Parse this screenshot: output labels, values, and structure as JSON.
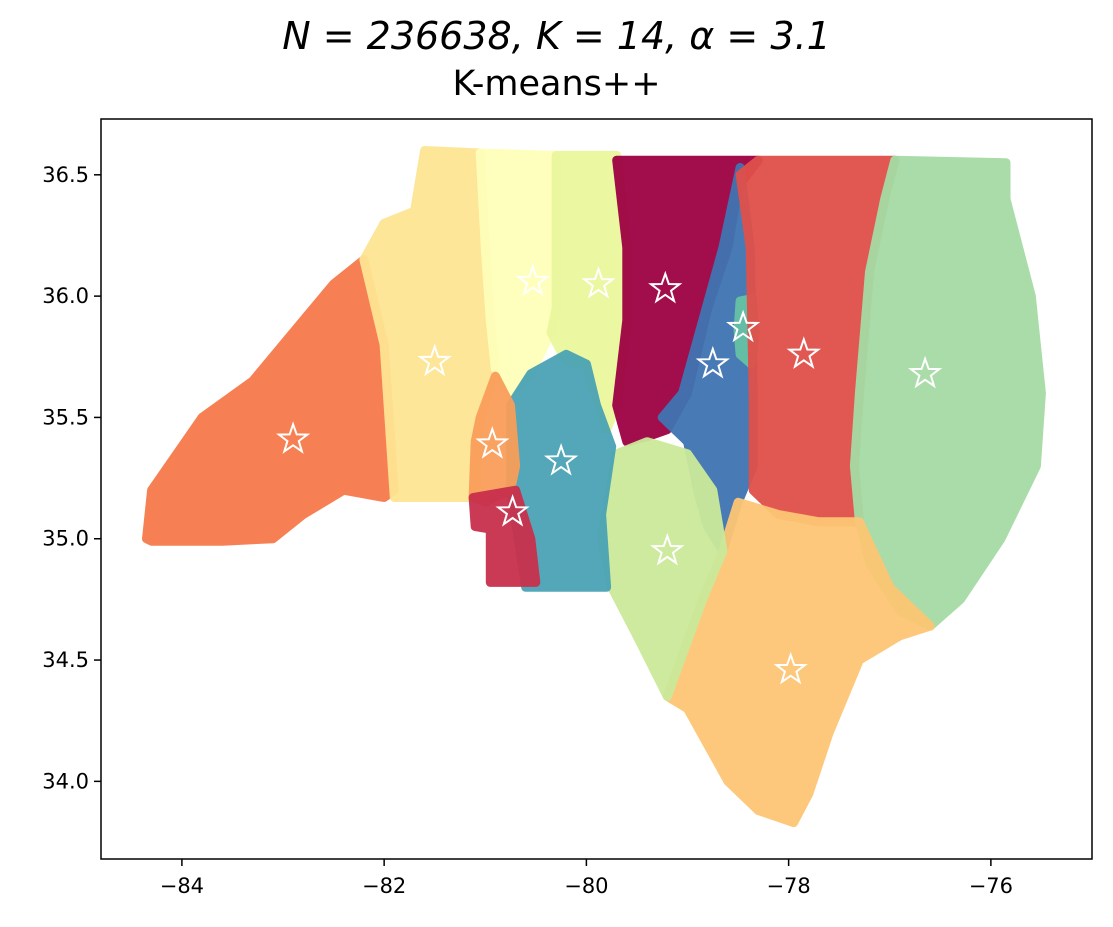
{
  "chart_data": {
    "type": "scatter",
    "title_line1": "N = 236638, K = 14, α = 3.1",
    "title_line2": "K-means++",
    "xlabel": "",
    "ylabel": "",
    "xlim": [
      -84.8,
      -75.0
    ],
    "ylim": [
      33.68,
      36.73
    ],
    "x_ticks": [
      -84,
      -82,
      -80,
      -78,
      -76
    ],
    "x_tick_labels": [
      "−84",
      "−82",
      "−80",
      "−78",
      "−76"
    ],
    "y_ticks": [
      34.0,
      34.5,
      35.0,
      35.5,
      36.0,
      36.5
    ],
    "y_tick_labels": [
      "34.0",
      "34.5",
      "35.0",
      "35.5",
      "36.0",
      "36.5"
    ],
    "grid": false,
    "n_points": 236638,
    "n_clusters": 14,
    "alpha": 3.1,
    "clusters": [
      {
        "id": 0,
        "color": "#f67a4a",
        "centroid": [
          -82.9,
          35.41
        ],
        "region": [
          [
            -84.35,
            35.0
          ],
          [
            -84.3,
            35.2
          ],
          [
            -83.8,
            35.5
          ],
          [
            -83.3,
            35.65
          ],
          [
            -82.8,
            35.9
          ],
          [
            -82.5,
            36.05
          ],
          [
            -82.2,
            36.15
          ],
          [
            -82.0,
            35.8
          ],
          [
            -81.9,
            35.2
          ],
          [
            -82.0,
            35.17
          ],
          [
            -82.4,
            35.2
          ],
          [
            -82.8,
            35.1
          ],
          [
            -83.1,
            35.0
          ],
          [
            -83.6,
            34.99
          ],
          [
            -84.3,
            34.99
          ]
        ]
      },
      {
        "id": 1,
        "color": "#fee593",
        "centroid": [
          -81.5,
          35.73
        ],
        "region": [
          [
            -82.2,
            36.15
          ],
          [
            -82.0,
            36.3
          ],
          [
            -81.7,
            36.35
          ],
          [
            -81.6,
            36.6
          ],
          [
            -81.05,
            36.59
          ],
          [
            -81.0,
            36.2
          ],
          [
            -80.95,
            35.9
          ],
          [
            -80.9,
            35.7
          ],
          [
            -81.05,
            35.5
          ],
          [
            -81.1,
            35.17
          ],
          [
            -81.5,
            35.17
          ],
          [
            -81.9,
            35.17
          ],
          [
            -82.0,
            35.8
          ]
        ]
      },
      {
        "id": 2,
        "color": "#ffffba",
        "centroid": [
          -80.53,
          36.06
        ],
        "region": [
          [
            -81.05,
            36.59
          ],
          [
            -80.3,
            36.58
          ],
          [
            -80.3,
            36.2
          ],
          [
            -80.3,
            35.95
          ],
          [
            -80.35,
            35.85
          ],
          [
            -80.55,
            35.68
          ],
          [
            -80.75,
            35.6
          ],
          [
            -80.9,
            35.7
          ],
          [
            -80.95,
            35.9
          ],
          [
            -81.0,
            36.2
          ]
        ]
      },
      {
        "id": 3,
        "color": "#eaf79d",
        "centroid": [
          -79.88,
          36.05
        ],
        "region": [
          [
            -80.3,
            36.58
          ],
          [
            -79.7,
            36.58
          ],
          [
            -79.6,
            36.2
          ],
          [
            -79.6,
            35.9
          ],
          [
            -79.7,
            35.55
          ],
          [
            -79.8,
            35.45
          ],
          [
            -80.0,
            35.72
          ],
          [
            -80.2,
            35.73
          ],
          [
            -80.35,
            35.85
          ],
          [
            -80.3,
            35.95
          ],
          [
            -80.3,
            36.2
          ]
        ]
      },
      {
        "id": 4,
        "color": "#9e0142",
        "centroid": [
          -79.22,
          36.03
        ],
        "region": [
          [
            -79.7,
            36.56
          ],
          [
            -78.3,
            36.56
          ],
          [
            -78.5,
            36.45
          ],
          [
            -78.6,
            36.2
          ],
          [
            -78.8,
            35.95
          ],
          [
            -79.0,
            35.6
          ],
          [
            -79.2,
            35.45
          ],
          [
            -79.4,
            35.42
          ],
          [
            -79.6,
            35.4
          ],
          [
            -79.7,
            35.55
          ],
          [
            -79.6,
            35.9
          ],
          [
            -79.6,
            36.2
          ]
        ]
      },
      {
        "id": 5,
        "color": "#3f74b2",
        "centroid": [
          -78.75,
          35.72
        ],
        "region": [
          [
            -78.48,
            36.53
          ],
          [
            -78.38,
            36.2
          ],
          [
            -78.35,
            35.6
          ],
          [
            -78.35,
            35.3
          ],
          [
            -78.5,
            35.15
          ],
          [
            -78.65,
            34.95
          ],
          [
            -78.8,
            35.05
          ],
          [
            -78.9,
            35.2
          ],
          [
            -79.0,
            35.4
          ],
          [
            -79.25,
            35.5
          ],
          [
            -79.05,
            35.6
          ],
          [
            -78.85,
            35.9
          ],
          [
            -78.65,
            36.2
          ]
        ]
      },
      {
        "id": 6,
        "color": "#66c2a5",
        "centroid": [
          -78.45,
          35.87
        ],
        "region": [
          [
            -78.48,
            35.98
          ],
          [
            -78.36,
            35.99
          ],
          [
            -78.33,
            35.85
          ],
          [
            -78.37,
            35.72
          ],
          [
            -78.48,
            35.76
          ],
          [
            -78.5,
            35.86
          ]
        ]
      },
      {
        "id": 7,
        "color": "#e0504a",
        "centroid": [
          -77.85,
          35.76
        ],
        "region": [
          [
            -78.3,
            36.56
          ],
          [
            -76.95,
            36.56
          ],
          [
            -77.05,
            36.4
          ],
          [
            -77.2,
            36.1
          ],
          [
            -77.3,
            35.6
          ],
          [
            -77.35,
            35.3
          ],
          [
            -77.3,
            35.07
          ],
          [
            -77.7,
            35.07
          ],
          [
            -78.1,
            35.1
          ],
          [
            -78.35,
            35.2
          ],
          [
            -78.35,
            35.6
          ],
          [
            -78.38,
            36.2
          ],
          [
            -78.48,
            36.5
          ]
        ]
      },
      {
        "id": 8,
        "color": "#a5dba4",
        "centroid": [
          -76.65,
          35.68
        ],
        "region": [
          [
            -76.95,
            36.56
          ],
          [
            -75.85,
            36.55
          ],
          [
            -75.85,
            36.4
          ],
          [
            -75.6,
            36.0
          ],
          [
            -75.5,
            35.6
          ],
          [
            -75.55,
            35.3
          ],
          [
            -75.9,
            35.0
          ],
          [
            -76.3,
            34.75
          ],
          [
            -76.6,
            34.64
          ],
          [
            -76.9,
            34.7
          ],
          [
            -77.2,
            34.9
          ],
          [
            -77.3,
            35.07
          ],
          [
            -77.35,
            35.3
          ],
          [
            -77.3,
            35.6
          ],
          [
            -77.2,
            36.1
          ],
          [
            -77.05,
            36.4
          ]
        ]
      },
      {
        "id": 9,
        "color": "#fdc674",
        "centroid": [
          -77.98,
          34.46
        ],
        "region": [
          [
            -78.65,
            34.95
          ],
          [
            -78.5,
            35.15
          ],
          [
            -78.1,
            35.1
          ],
          [
            -77.7,
            35.07
          ],
          [
            -77.3,
            35.07
          ],
          [
            -77.0,
            34.8
          ],
          [
            -76.6,
            34.64
          ],
          [
            -76.9,
            34.6
          ],
          [
            -77.3,
            34.5
          ],
          [
            -77.6,
            34.2
          ],
          [
            -77.8,
            33.95
          ],
          [
            -77.95,
            33.83
          ],
          [
            -78.3,
            33.88
          ],
          [
            -78.6,
            34.0
          ],
          [
            -79.0,
            34.3
          ],
          [
            -79.2,
            34.35
          ],
          [
            -78.85,
            34.75
          ]
        ]
      },
      {
        "id": 10,
        "color": "#cbe99a",
        "centroid": [
          -79.2,
          34.95
        ],
        "region": [
          [
            -79.4,
            35.4
          ],
          [
            -79.0,
            35.35
          ],
          [
            -78.75,
            35.2
          ],
          [
            -78.65,
            34.95
          ],
          [
            -78.85,
            34.75
          ],
          [
            -79.2,
            34.35
          ],
          [
            -79.5,
            34.6
          ],
          [
            -79.75,
            34.8
          ],
          [
            -79.85,
            35.0
          ],
          [
            -79.7,
            35.35
          ]
        ]
      },
      {
        "id": 11,
        "color": "#4aa3b5",
        "centroid": [
          -80.25,
          35.32
        ],
        "region": [
          [
            -80.2,
            35.76
          ],
          [
            -80.55,
            35.68
          ],
          [
            -80.75,
            35.55
          ],
          [
            -80.75,
            35.2
          ],
          [
            -80.6,
            34.8
          ],
          [
            -79.8,
            34.8
          ],
          [
            -79.85,
            35.1
          ],
          [
            -79.75,
            35.38
          ],
          [
            -79.9,
            35.55
          ],
          [
            -80.0,
            35.72
          ]
        ]
      },
      {
        "id": 12,
        "color": "#f99e5a",
        "centroid": [
          -80.93,
          35.39
        ],
        "region": [
          [
            -80.9,
            35.67
          ],
          [
            -80.75,
            35.55
          ],
          [
            -80.7,
            35.3
          ],
          [
            -80.75,
            35.2
          ],
          [
            -81.0,
            35.15
          ],
          [
            -81.12,
            35.17
          ],
          [
            -81.1,
            35.4
          ],
          [
            -81.05,
            35.5
          ]
        ]
      },
      {
        "id": 13,
        "color": "#c8304c",
        "centroid": [
          -80.73,
          35.11
        ],
        "region": [
          [
            -81.12,
            35.17
          ],
          [
            -81.1,
            35.05
          ],
          [
            -80.95,
            35.04
          ],
          [
            -80.95,
            34.82
          ],
          [
            -80.5,
            34.82
          ],
          [
            -80.55,
            35.0
          ],
          [
            -80.7,
            35.2
          ]
        ]
      }
    ]
  }
}
